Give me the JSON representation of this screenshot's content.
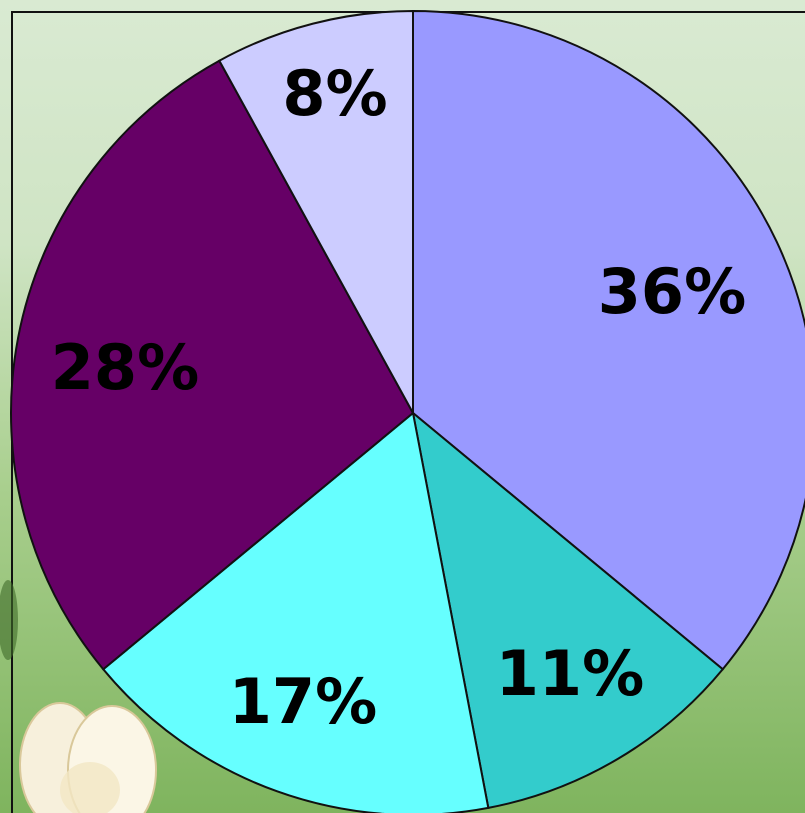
{
  "chart_data": {
    "type": "pie",
    "slices": [
      {
        "label": "36%",
        "value": 36,
        "color": "#9999ff"
      },
      {
        "label": "11%",
        "value": 11,
        "color": "#33cccc"
      },
      {
        "label": "17%",
        "value": 17,
        "color": "#66ffff"
      },
      {
        "label": "28%",
        "value": 28,
        "color": "#660066"
      },
      {
        "label": "8%",
        "value": 8,
        "color": "#ccccff"
      }
    ],
    "start_angle_deg": 0,
    "direction": "clockwise"
  },
  "decoration": {
    "background": "green-gradient",
    "corner_art": "white-flower-buds-icon"
  }
}
